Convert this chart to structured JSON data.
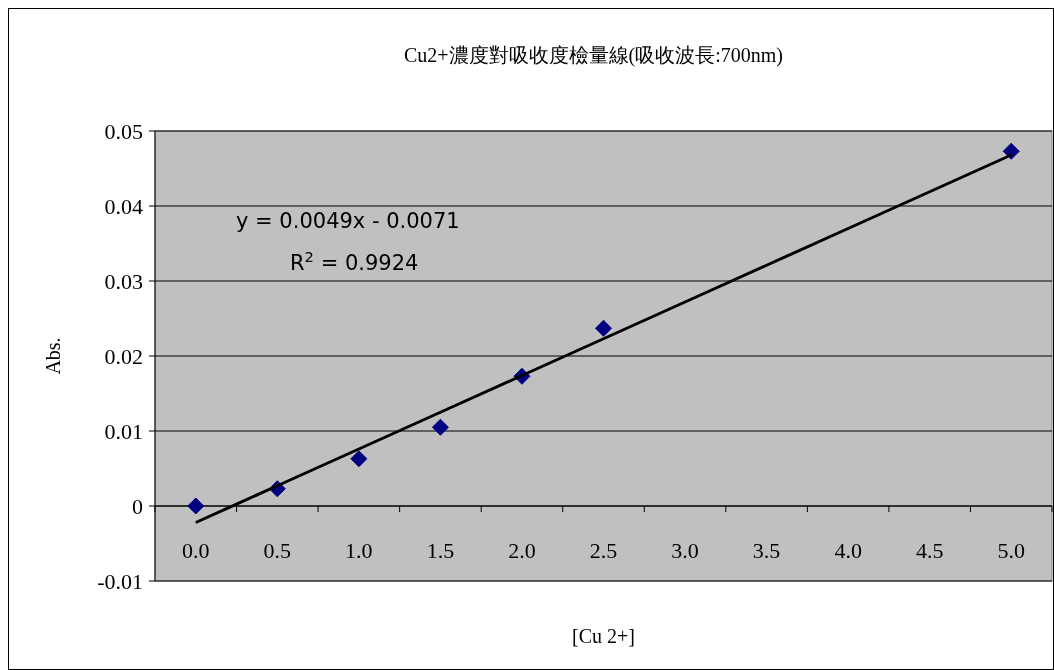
{
  "chart_data": {
    "type": "scatter",
    "title": "Cu2+濃度對吸收度檢量線(吸收波長:700nm)",
    "xlabel": "[Cu 2+]",
    "ylabel": "Abs.",
    "categories": [
      "0.0",
      "0.5",
      "1.0",
      "1.5",
      "2.0",
      "2.5",
      "3.0",
      "3.5",
      "4.0",
      "4.5",
      "5.0"
    ],
    "series": [
      {
        "type": "scatter",
        "color": "#000080",
        "marker": "diamond",
        "x": [
          "0.0",
          "0.5",
          "1.0",
          "1.5",
          "2.0",
          "2.5",
          "5.0"
        ],
        "values": [
          0,
          0.0023,
          0.0063,
          0.0105,
          0.0173,
          0.0237,
          0.0473
        ]
      },
      {
        "type": "line",
        "color": "#000000",
        "marker": "none",
        "line_style": "solid",
        "values": [
          -0.0022,
          0.0027,
          0.0076,
          0.0125,
          0.0174,
          0.0223,
          0.0272,
          0.0321,
          0.037,
          0.0419,
          0.0468
        ]
      }
    ],
    "ylim": [
      -0.01,
      0.05
    ],
    "yticks": [
      -0.01,
      {
        "value": 0,
        "label": "0"
      },
      0.01,
      0.02,
      0.03,
      0.04,
      0.05
    ],
    "grid": "y",
    "annotations": [
      "y = 0.0049x - 0.0071",
      "R$^{2}$ = 0.9924"
    ]
  }
}
